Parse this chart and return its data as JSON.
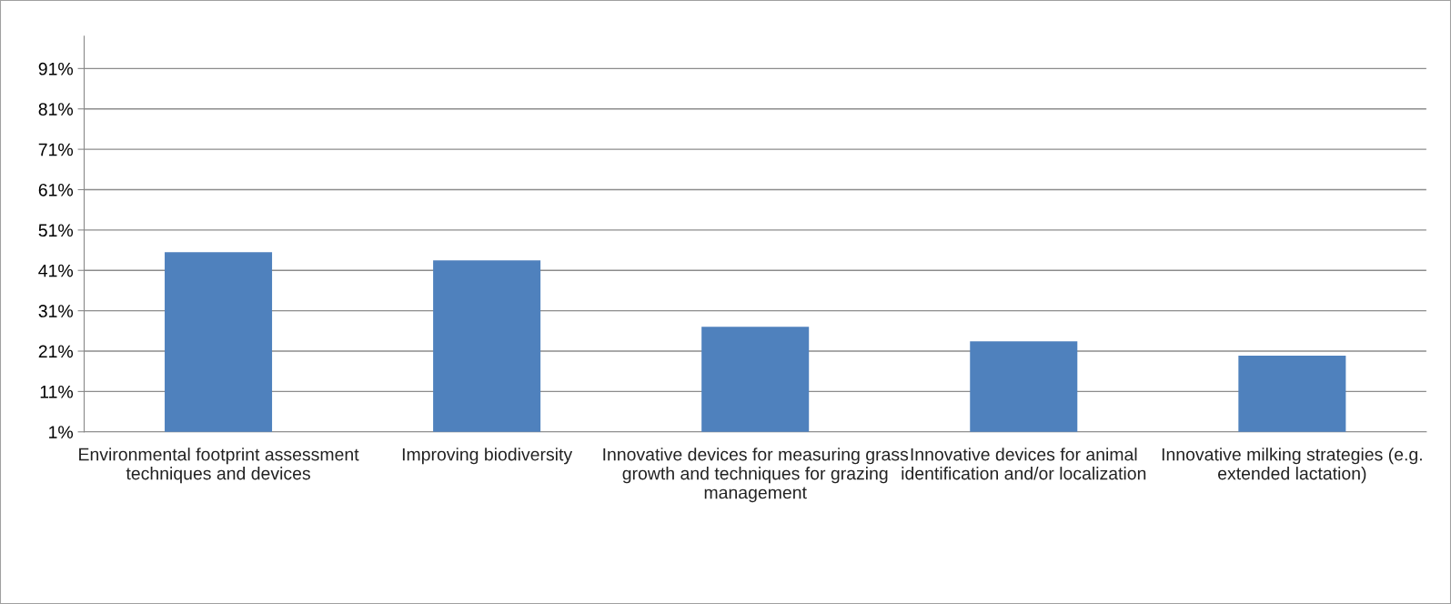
{
  "chart_data": {
    "type": "bar",
    "categories": [
      "Environmental footprint assessment techniques and devices",
      "Improving biodiversity",
      "Innovative devices for measuring grass growth and techniques for grazing management",
      "Innovative devices for animal identification and/or localization",
      "Innovative milking strategies (e.g. extended lactation)"
    ],
    "values": [
      45.5,
      43.5,
      27,
      23.4,
      19.9
    ],
    "color": "#4f81bd",
    "ylim": [
      1,
      99
    ],
    "yticks": [
      {
        "value": 1,
        "label": "1%"
      },
      {
        "value": 11,
        "label": "11%"
      },
      {
        "value": 21,
        "label": "21%"
      },
      {
        "value": 31,
        "label": "31%"
      },
      {
        "value": 41,
        "label": "41%"
      },
      {
        "value": 51,
        "label": "51%"
      },
      {
        "value": 61,
        "label": "61%"
      },
      {
        "value": 71,
        "label": "71%"
      },
      {
        "value": 81,
        "label": "81%"
      },
      {
        "value": 91,
        "label": "91%"
      }
    ],
    "grid": "y",
    "legend": false
  }
}
